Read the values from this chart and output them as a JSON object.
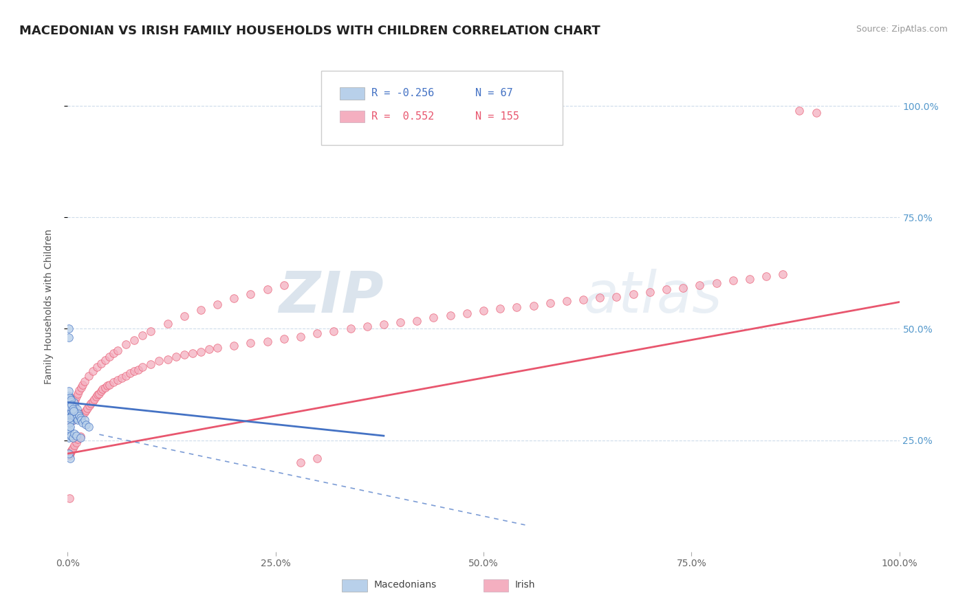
{
  "title": "MACEDONIAN VS IRISH FAMILY HOUSEHOLDS WITH CHILDREN CORRELATION CHART",
  "source": "Source: ZipAtlas.com",
  "ylabel": "Family Households with Children",
  "ytick_labels": [
    "25.0%",
    "50.0%",
    "75.0%",
    "100.0%"
  ],
  "legend_macedonian_R": "-0.256",
  "legend_macedonian_N": "67",
  "legend_irish_R": "0.552",
  "legend_irish_N": "155",
  "macedonian_color": "#b8d0ea",
  "irish_color": "#f4afc0",
  "trend_macedonian_color": "#4472c4",
  "trend_irish_color": "#e8566e",
  "watermark_zip": "ZIP",
  "watermark_atlas": "atlas",
  "xlim": [
    0.0,
    1.0
  ],
  "ylim": [
    0.0,
    1.1
  ],
  "background_color": "#ffffff",
  "grid_color": "#c8d8e8",
  "title_fontsize": 13,
  "axis_fontsize": 10,
  "macedonian_x": [
    0.001,
    0.001,
    0.001,
    0.002,
    0.002,
    0.002,
    0.002,
    0.003,
    0.003,
    0.003,
    0.003,
    0.003,
    0.004,
    0.004,
    0.004,
    0.004,
    0.005,
    0.005,
    0.005,
    0.005,
    0.006,
    0.006,
    0.006,
    0.007,
    0.007,
    0.008,
    0.008,
    0.009,
    0.01,
    0.01,
    0.011,
    0.012,
    0.013,
    0.014,
    0.015,
    0.016,
    0.018,
    0.02,
    0.022,
    0.025,
    0.001,
    0.001,
    0.002,
    0.002,
    0.003,
    0.003,
    0.004,
    0.005,
    0.006,
    0.007,
    0.001,
    0.001,
    0.001,
    0.002,
    0.002,
    0.004,
    0.006,
    0.008,
    0.01,
    0.015,
    0.001,
    0.001,
    0.002,
    0.002,
    0.003,
    0.003,
    0.001
  ],
  "macedonian_y": [
    0.32,
    0.335,
    0.31,
    0.33,
    0.325,
    0.315,
    0.34,
    0.328,
    0.318,
    0.308,
    0.345,
    0.322,
    0.312,
    0.302,
    0.338,
    0.295,
    0.325,
    0.315,
    0.33,
    0.305,
    0.31,
    0.3,
    0.32,
    0.335,
    0.295,
    0.315,
    0.305,
    0.325,
    0.31,
    0.3,
    0.32,
    0.295,
    0.31,
    0.305,
    0.3,
    0.295,
    0.29,
    0.295,
    0.285,
    0.28,
    0.35,
    0.36,
    0.34,
    0.345,
    0.335,
    0.325,
    0.34,
    0.33,
    0.32,
    0.315,
    0.26,
    0.27,
    0.255,
    0.265,
    0.275,
    0.26,
    0.255,
    0.265,
    0.26,
    0.255,
    0.48,
    0.5,
    0.29,
    0.3,
    0.28,
    0.21,
    0.22
  ],
  "irish_x": [
    0.001,
    0.001,
    0.001,
    0.002,
    0.002,
    0.002,
    0.002,
    0.002,
    0.003,
    0.003,
    0.003,
    0.003,
    0.003,
    0.004,
    0.004,
    0.004,
    0.005,
    0.005,
    0.005,
    0.005,
    0.006,
    0.006,
    0.006,
    0.007,
    0.007,
    0.007,
    0.008,
    0.008,
    0.009,
    0.009,
    0.01,
    0.01,
    0.011,
    0.011,
    0.012,
    0.013,
    0.014,
    0.015,
    0.016,
    0.017,
    0.018,
    0.02,
    0.022,
    0.024,
    0.026,
    0.028,
    0.03,
    0.032,
    0.034,
    0.036,
    0.038,
    0.04,
    0.042,
    0.045,
    0.048,
    0.05,
    0.055,
    0.06,
    0.065,
    0.07,
    0.075,
    0.08,
    0.085,
    0.09,
    0.1,
    0.11,
    0.12,
    0.13,
    0.14,
    0.15,
    0.16,
    0.17,
    0.18,
    0.2,
    0.22,
    0.24,
    0.26,
    0.28,
    0.3,
    0.32,
    0.34,
    0.36,
    0.38,
    0.4,
    0.42,
    0.44,
    0.46,
    0.48,
    0.5,
    0.52,
    0.54,
    0.56,
    0.58,
    0.6,
    0.62,
    0.64,
    0.66,
    0.68,
    0.7,
    0.72,
    0.74,
    0.76,
    0.78,
    0.8,
    0.82,
    0.84,
    0.86,
    0.88,
    0.9,
    0.002,
    0.003,
    0.004,
    0.005,
    0.006,
    0.007,
    0.008,
    0.009,
    0.01,
    0.012,
    0.014,
    0.016,
    0.018,
    0.02,
    0.025,
    0.03,
    0.035,
    0.04,
    0.045,
    0.05,
    0.055,
    0.06,
    0.07,
    0.08,
    0.09,
    0.1,
    0.12,
    0.14,
    0.16,
    0.18,
    0.2,
    0.22,
    0.24,
    0.26,
    0.28,
    0.3,
    0.002,
    0.003,
    0.004,
    0.005,
    0.006,
    0.008,
    0.01,
    0.012,
    0.015,
    0.002
  ],
  "irish_y": [
    0.31,
    0.295,
    0.32,
    0.305,
    0.315,
    0.3,
    0.325,
    0.29,
    0.308,
    0.318,
    0.295,
    0.312,
    0.302,
    0.322,
    0.308,
    0.298,
    0.315,
    0.305,
    0.295,
    0.328,
    0.31,
    0.3,
    0.318,
    0.308,
    0.295,
    0.32,
    0.31,
    0.3,
    0.315,
    0.305,
    0.308,
    0.298,
    0.312,
    0.302,
    0.305,
    0.31,
    0.308,
    0.302,
    0.31,
    0.305,
    0.308,
    0.312,
    0.318,
    0.322,
    0.328,
    0.332,
    0.338,
    0.342,
    0.348,
    0.352,
    0.355,
    0.36,
    0.365,
    0.368,
    0.372,
    0.375,
    0.38,
    0.385,
    0.39,
    0.395,
    0.4,
    0.405,
    0.408,
    0.415,
    0.42,
    0.428,
    0.432,
    0.438,
    0.442,
    0.445,
    0.448,
    0.455,
    0.458,
    0.462,
    0.468,
    0.472,
    0.478,
    0.482,
    0.49,
    0.495,
    0.5,
    0.505,
    0.51,
    0.515,
    0.518,
    0.525,
    0.53,
    0.535,
    0.54,
    0.545,
    0.548,
    0.552,
    0.558,
    0.562,
    0.565,
    0.57,
    0.572,
    0.578,
    0.582,
    0.588,
    0.592,
    0.598,
    0.602,
    0.608,
    0.612,
    0.618,
    0.622,
    0.99,
    0.985,
    0.295,
    0.302,
    0.308,
    0.315,
    0.32,
    0.328,
    0.335,
    0.34,
    0.348,
    0.355,
    0.362,
    0.368,
    0.375,
    0.382,
    0.395,
    0.405,
    0.415,
    0.422,
    0.43,
    0.438,
    0.445,
    0.452,
    0.465,
    0.475,
    0.485,
    0.495,
    0.512,
    0.528,
    0.542,
    0.555,
    0.568,
    0.578,
    0.588,
    0.598,
    0.2,
    0.21,
    0.215,
    0.22,
    0.225,
    0.228,
    0.232,
    0.238,
    0.245,
    0.252,
    0.258,
    0.12
  ],
  "mac_trend_x0": 0.0,
  "mac_trend_x1": 0.38,
  "mac_trend_y0": 0.335,
  "mac_trend_y1": 0.26,
  "mac_trend_dashed_x0": 0.038,
  "mac_trend_dashed_x1": 0.55,
  "mac_trend_dashed_y0": 0.263,
  "mac_trend_dashed_y1": 0.06,
  "iri_trend_x0": 0.0,
  "iri_trend_x1": 1.0,
  "iri_trend_y0": 0.22,
  "iri_trend_y1": 0.56
}
